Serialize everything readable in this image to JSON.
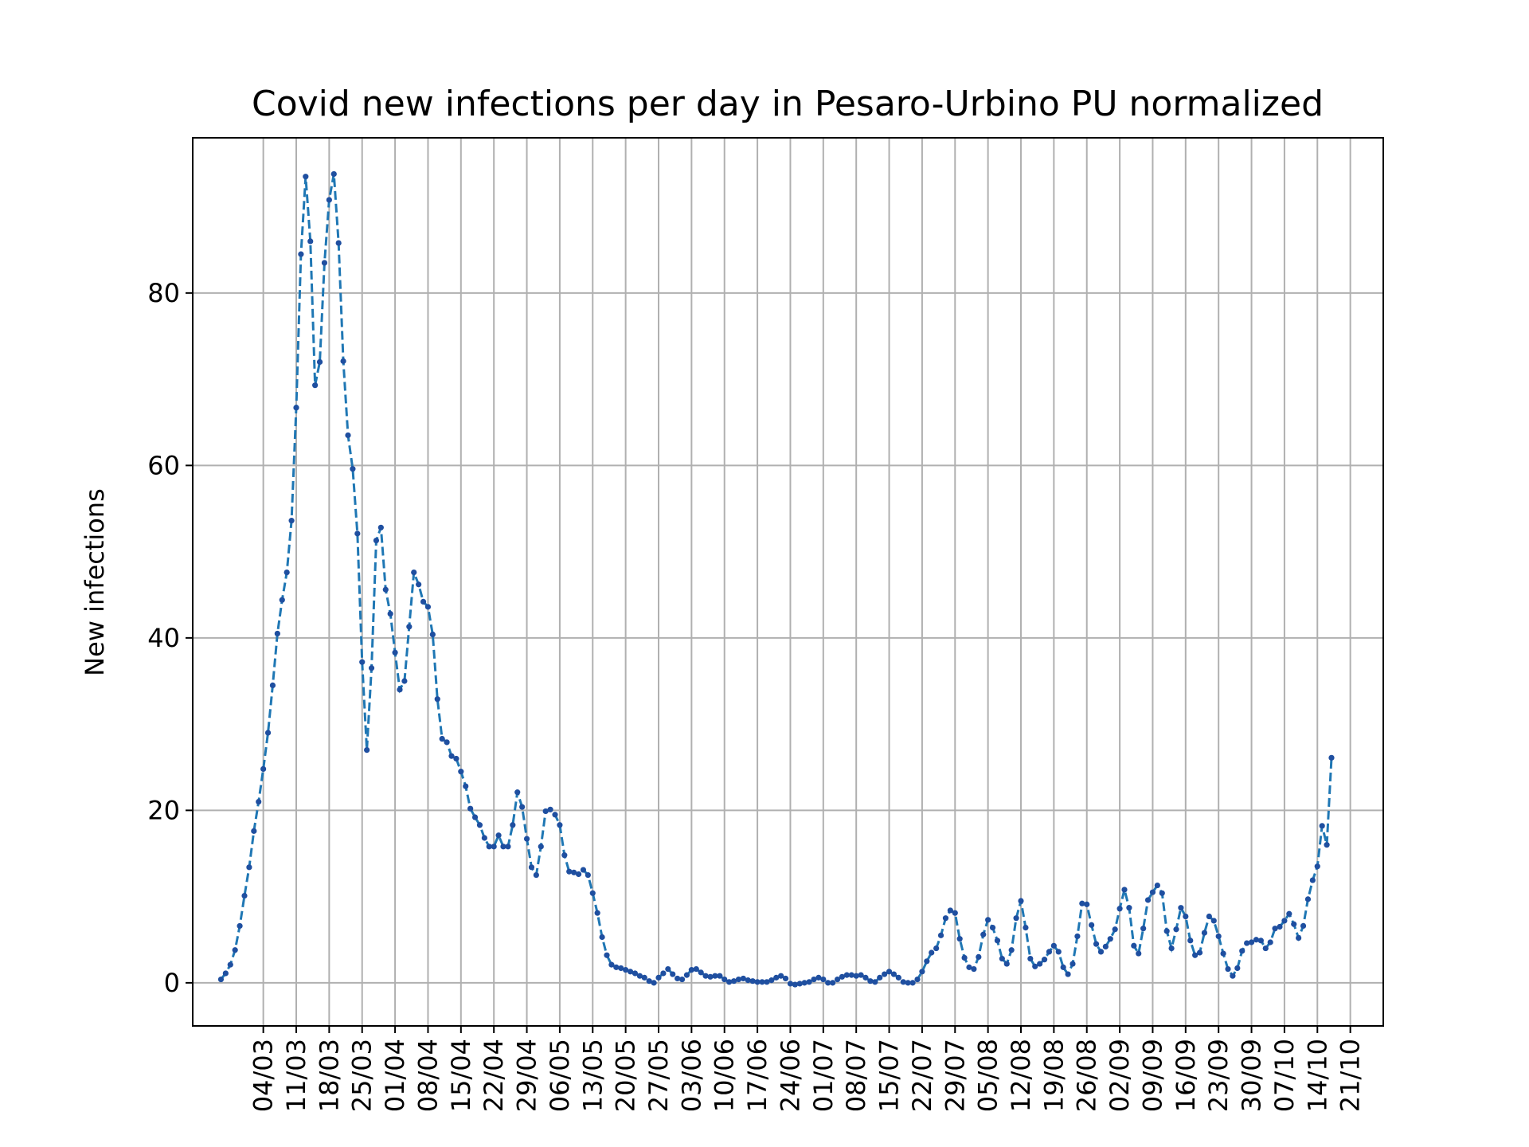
{
  "chart_data": {
    "type": "line",
    "title": "Covid new infections per day in Pesaro-Urbino PU normalized",
    "xlabel": "",
    "ylabel": "New infections",
    "x_start": "2020-02-24",
    "x_end": "2020-10-21",
    "xlim": [
      "2020-02-18",
      "2020-10-28"
    ],
    "ylim": [
      -5,
      98
    ],
    "y_ticks": [
      0,
      20,
      40,
      60,
      80
    ],
    "x_ticks": [
      {
        "date": "2020-03-04",
        "label": "04/03"
      },
      {
        "date": "2020-03-11",
        "label": "11/03"
      },
      {
        "date": "2020-03-18",
        "label": "18/03"
      },
      {
        "date": "2020-03-25",
        "label": "25/03"
      },
      {
        "date": "2020-04-01",
        "label": "01/04"
      },
      {
        "date": "2020-04-08",
        "label": "08/04"
      },
      {
        "date": "2020-04-15",
        "label": "15/04"
      },
      {
        "date": "2020-04-22",
        "label": "22/04"
      },
      {
        "date": "2020-04-29",
        "label": "29/04"
      },
      {
        "date": "2020-05-06",
        "label": "06/05"
      },
      {
        "date": "2020-05-13",
        "label": "13/05"
      },
      {
        "date": "2020-05-20",
        "label": "20/05"
      },
      {
        "date": "2020-05-27",
        "label": "27/05"
      },
      {
        "date": "2020-06-03",
        "label": "03/06"
      },
      {
        "date": "2020-06-10",
        "label": "10/06"
      },
      {
        "date": "2020-06-17",
        "label": "17/06"
      },
      {
        "date": "2020-06-24",
        "label": "24/06"
      },
      {
        "date": "2020-07-01",
        "label": "01/07"
      },
      {
        "date": "2020-07-08",
        "label": "08/07"
      },
      {
        "date": "2020-07-15",
        "label": "15/07"
      },
      {
        "date": "2020-07-22",
        "label": "22/07"
      },
      {
        "date": "2020-07-29",
        "label": "29/07"
      },
      {
        "date": "2020-08-05",
        "label": "05/08"
      },
      {
        "date": "2020-08-12",
        "label": "12/08"
      },
      {
        "date": "2020-08-19",
        "label": "19/08"
      },
      {
        "date": "2020-08-26",
        "label": "26/08"
      },
      {
        "date": "2020-09-02",
        "label": "02/09"
      },
      {
        "date": "2020-09-09",
        "label": "09/09"
      },
      {
        "date": "2020-09-16",
        "label": "16/09"
      },
      {
        "date": "2020-09-23",
        "label": "23/09"
      },
      {
        "date": "2020-09-30",
        "label": "30/09"
      },
      {
        "date": "2020-10-07",
        "label": "07/10"
      },
      {
        "date": "2020-10-14",
        "label": "14/10"
      },
      {
        "date": "2020-10-21",
        "label": "21/10"
      }
    ],
    "grid": true,
    "line_color": "#1f77b4",
    "marker_color": "#1f4fa0",
    "line_style": "dashed",
    "series": [
      {
        "values": [
          0.4,
          1.1,
          2.1,
          3.8,
          6.6,
          10.1,
          13.4,
          17.6,
          21.0,
          24.8,
          29.0,
          34.5,
          40.5,
          44.4,
          47.6,
          53.6,
          66.7,
          84.5,
          93.5,
          86.0,
          69.3,
          72.0,
          83.5,
          90.8,
          93.8,
          85.8,
          72.1,
          63.5,
          59.6,
          52.1,
          37.2,
          27.0,
          36.5,
          51.3,
          52.8,
          45.6,
          42.8,
          38.3,
          34.0,
          35.0,
          41.3,
          47.6,
          46.2,
          44.2,
          43.6,
          40.4,
          32.9,
          28.3,
          27.9,
          26.3,
          26.0,
          24.5,
          22.8,
          20.2,
          19.2,
          18.3,
          16.8,
          15.8,
          15.8,
          17.1,
          15.8,
          15.8,
          18.3,
          22.1,
          20.4,
          16.7,
          13.4,
          12.5,
          15.8,
          19.9,
          20.1,
          19.5,
          18.3,
          14.8,
          12.9,
          12.8,
          12.6,
          13.1,
          12.5,
          10.4,
          8.1,
          5.3,
          3.2,
          2.1,
          1.8,
          1.7,
          1.5,
          1.3,
          1.1,
          0.8,
          0.6,
          0.2,
          0.0,
          0.6,
          1.1,
          1.6,
          1.0,
          0.5,
          0.4,
          0.9,
          1.5,
          1.6,
          1.2,
          0.8,
          0.7,
          0.8,
          0.8,
          0.4,
          0.1,
          0.2,
          0.4,
          0.5,
          0.3,
          0.2,
          0.1,
          0.1,
          0.1,
          0.3,
          0.6,
          0.8,
          0.5,
          -0.1,
          -0.2,
          -0.1,
          0.0,
          0.1,
          0.4,
          0.6,
          0.4,
          0.0,
          0.0,
          0.4,
          0.7,
          0.9,
          0.9,
          0.8,
          0.9,
          0.6,
          0.2,
          0.1,
          0.6,
          1.0,
          1.3,
          1.0,
          0.6,
          0.1,
          0.0,
          0.0,
          0.4,
          1.3,
          2.5,
          3.5,
          4.0,
          5.5,
          7.5,
          8.4,
          8.1,
          5.1,
          2.9,
          1.8,
          1.6,
          3.0,
          5.6,
          7.3,
          6.4,
          4.9,
          2.8,
          2.2,
          3.8,
          7.5,
          9.5,
          6.4,
          2.8,
          1.9,
          2.2,
          2.7,
          3.6,
          4.3,
          3.6,
          1.8,
          1.0,
          2.2,
          5.4,
          9.2,
          9.1,
          6.7,
          4.5,
          3.6,
          4.2,
          5.1,
          6.2,
          8.6,
          10.8,
          8.7,
          4.3,
          3.4,
          6.3,
          9.6,
          10.5,
          11.3,
          10.4,
          6.0,
          4.0,
          6.2,
          8.7,
          7.7,
          4.9,
          3.2,
          3.5,
          5.8,
          7.7,
          7.2,
          5.4,
          3.4,
          1.6,
          0.8,
          1.7,
          3.7,
          4.6,
          4.7,
          5.0,
          4.9,
          4.0,
          4.7,
          6.3,
          6.5,
          7.2,
          8.0,
          6.8,
          5.2,
          6.6,
          9.7,
          11.9,
          13.5,
          18.2,
          16.0,
          26.1
        ]
      }
    ]
  }
}
